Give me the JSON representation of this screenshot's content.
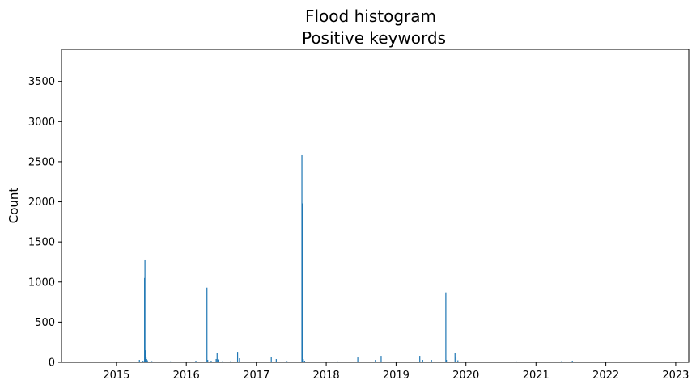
{
  "chart_data": {
    "type": "bar",
    "title": "Flood histogram",
    "subtitle": "Positive keywords",
    "xlabel": "",
    "ylabel": "Count",
    "xlim": [
      "2014-03-20",
      "2023-03-10"
    ],
    "ylim": [
      0,
      3900
    ],
    "x_ticks": [
      "2015",
      "2016",
      "2017",
      "2018",
      "2019",
      "2020",
      "2021",
      "2022",
      "2023"
    ],
    "y_ticks": [
      0,
      500,
      1000,
      1500,
      2000,
      2500,
      3000,
      3500
    ],
    "grid": false,
    "bar_color": "#1f77b4",
    "points": [
      {
        "x": "2015-05-01",
        "y": 30
      },
      {
        "x": "2015-05-20",
        "y": 20
      },
      {
        "x": "2015-05-28",
        "y": 1050
      },
      {
        "x": "2015-05-30",
        "y": 1280
      },
      {
        "x": "2015-06-01",
        "y": 150
      },
      {
        "x": "2015-06-03",
        "y": 90
      },
      {
        "x": "2015-06-05",
        "y": 60
      },
      {
        "x": "2015-06-08",
        "y": 40
      },
      {
        "x": "2015-06-12",
        "y": 25
      },
      {
        "x": "2015-07-05",
        "y": 15
      },
      {
        "x": "2015-08-10",
        "y": 10
      },
      {
        "x": "2015-10-10",
        "y": 12
      },
      {
        "x": "2015-12-01",
        "y": 10
      },
      {
        "x": "2016-02-20",
        "y": 20
      },
      {
        "x": "2016-04-18",
        "y": 930
      },
      {
        "x": "2016-04-22",
        "y": 30
      },
      {
        "x": "2016-05-10",
        "y": 20
      },
      {
        "x": "2016-06-05",
        "y": 40
      },
      {
        "x": "2016-06-10",
        "y": 120
      },
      {
        "x": "2016-06-15",
        "y": 35
      },
      {
        "x": "2016-07-10",
        "y": 20
      },
      {
        "x": "2016-08-20",
        "y": 15
      },
      {
        "x": "2016-09-25",
        "y": 130
      },
      {
        "x": "2016-10-05",
        "y": 50
      },
      {
        "x": "2016-11-15",
        "y": 10
      },
      {
        "x": "2017-01-20",
        "y": 10
      },
      {
        "x": "2017-03-20",
        "y": 70
      },
      {
        "x": "2017-04-15",
        "y": 40
      },
      {
        "x": "2017-06-10",
        "y": 15
      },
      {
        "x": "2017-08-27",
        "y": 2580
      },
      {
        "x": "2017-08-29",
        "y": 1980
      },
      {
        "x": "2017-08-31",
        "y": 80
      },
      {
        "x": "2017-09-03",
        "y": 40
      },
      {
        "x": "2017-09-10",
        "y": 20
      },
      {
        "x": "2017-10-20",
        "y": 10
      },
      {
        "x": "2018-03-01",
        "y": 12
      },
      {
        "x": "2018-06-15",
        "y": 60
      },
      {
        "x": "2018-09-15",
        "y": 30
      },
      {
        "x": "2018-10-15",
        "y": 80
      },
      {
        "x": "2019-01-10",
        "y": 10
      },
      {
        "x": "2019-05-05",
        "y": 80
      },
      {
        "x": "2019-05-20",
        "y": 30
      },
      {
        "x": "2019-07-05",
        "y": 30
      },
      {
        "x": "2019-09-18",
        "y": 870
      },
      {
        "x": "2019-09-21",
        "y": 30
      },
      {
        "x": "2019-11-05",
        "y": 120
      },
      {
        "x": "2019-11-10",
        "y": 60
      },
      {
        "x": "2019-11-20",
        "y": 25
      },
      {
        "x": "2020-01-15",
        "y": 10
      },
      {
        "x": "2020-03-10",
        "y": 10
      },
      {
        "x": "2020-06-10",
        "y": 8
      },
      {
        "x": "2020-09-20",
        "y": 12
      },
      {
        "x": "2021-03-10",
        "y": 8
      },
      {
        "x": "2021-05-15",
        "y": 15
      },
      {
        "x": "2021-07-10",
        "y": 20
      },
      {
        "x": "2022-04-10",
        "y": 10
      },
      {
        "x": "2022-08-20",
        "y": 10
      }
    ]
  }
}
